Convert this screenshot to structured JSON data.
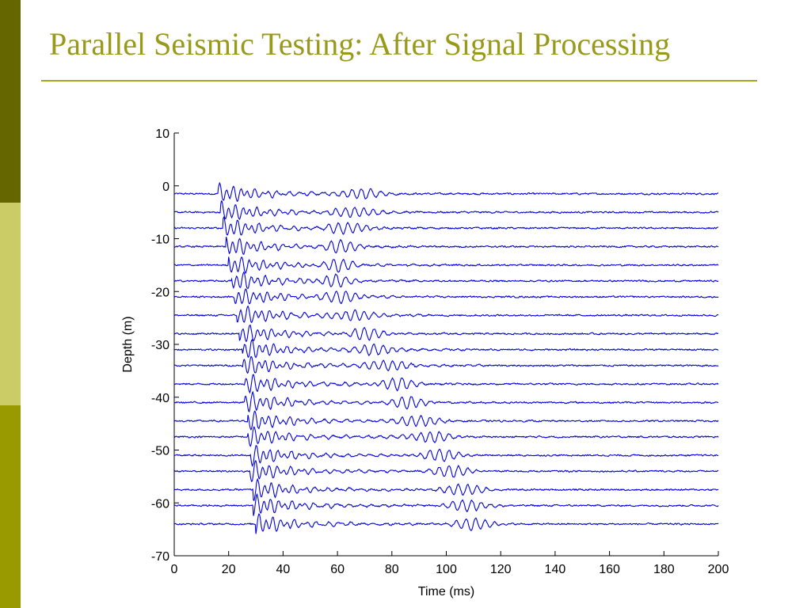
{
  "slide": {
    "title": "Parallel Seismic Testing: After Signal Processing",
    "colors": {
      "title": "#99991a",
      "rule": "#a6a623",
      "sidebar_dark": "#666600",
      "sidebar_light": "#cccc66",
      "sidebar_mid": "#999900"
    }
  },
  "chart_data": {
    "type": "line",
    "title": "",
    "xlabel": "Time (ms)",
    "ylabel": "Depth (m)",
    "xlim": [
      0,
      200
    ],
    "ylim": [
      -70,
      10
    ],
    "xticks": [
      "0",
      "20",
      "40",
      "60",
      "80",
      "100",
      "120",
      "140",
      "160",
      "180",
      "200"
    ],
    "yticks": [
      "10",
      "0",
      "-10",
      "-20",
      "-30",
      "-40",
      "-50",
      "-60",
      "-70"
    ],
    "grid": false,
    "line_color": "#0000dd",
    "trace_baselines_m": [
      -1.5,
      -5,
      -8,
      -11.5,
      -15,
      -18,
      -21,
      -24.5,
      -28,
      -31,
      -34,
      -37.5,
      -41,
      -44.5,
      -47.5,
      -51,
      -54,
      -57.5,
      -60.5,
      -64
    ],
    "first_arrival_ms": [
      16,
      17,
      18,
      19,
      20,
      21,
      22,
      23,
      24,
      25,
      25,
      26,
      26,
      27,
      27,
      28,
      28,
      29,
      29,
      30
    ],
    "reflection_arrival_ms": [
      68,
      66,
      64,
      62,
      60,
      58,
      62,
      66,
      70,
      74,
      78,
      82,
      86,
      90,
      94,
      98,
      102,
      106,
      108,
      110
    ]
  }
}
